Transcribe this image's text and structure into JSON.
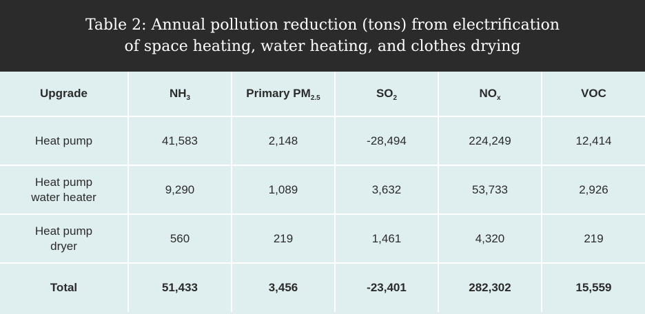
{
  "title_lines": [
    "Table 2: Annual pollution reduction (tons) from electrification",
    "of space heating, water heating, and clothes drying"
  ],
  "colors": {
    "header_bg": "#2b2b2b",
    "table_bg": "#dfeff0",
    "text": "#2b2b2b",
    "gridline": "#ffffff"
  },
  "chart_data": {
    "type": "table",
    "title": "Table 2: Annual pollution reduction (tons) from electrification of space heating, water heating, and clothes drying",
    "columns": [
      {
        "base": "Upgrade",
        "sub": ""
      },
      {
        "base": "NH",
        "sub": "3"
      },
      {
        "base": "Primary PM",
        "sub": "2.5"
      },
      {
        "base": "SO",
        "sub": "2"
      },
      {
        "base": "NO",
        "sub": "x"
      },
      {
        "base": "VOC",
        "sub": ""
      }
    ],
    "rows": [
      {
        "label_lines": [
          "Heat pump"
        ],
        "values": [
          "41,583",
          "2,148",
          "-28,494",
          "224,249",
          "12,414"
        ]
      },
      {
        "label_lines": [
          "Heat pump",
          "water heater"
        ],
        "values": [
          "9,290",
          "1,089",
          "3,632",
          "53,733",
          "2,926"
        ]
      },
      {
        "label_lines": [
          "Heat pump",
          "dryer"
        ],
        "values": [
          "560",
          "219",
          "1,461",
          "4,320",
          "219"
        ]
      }
    ],
    "total": {
      "label": "Total",
      "values": [
        "51,433",
        "3,456",
        "-23,401",
        "282,302",
        "15,559"
      ]
    }
  }
}
